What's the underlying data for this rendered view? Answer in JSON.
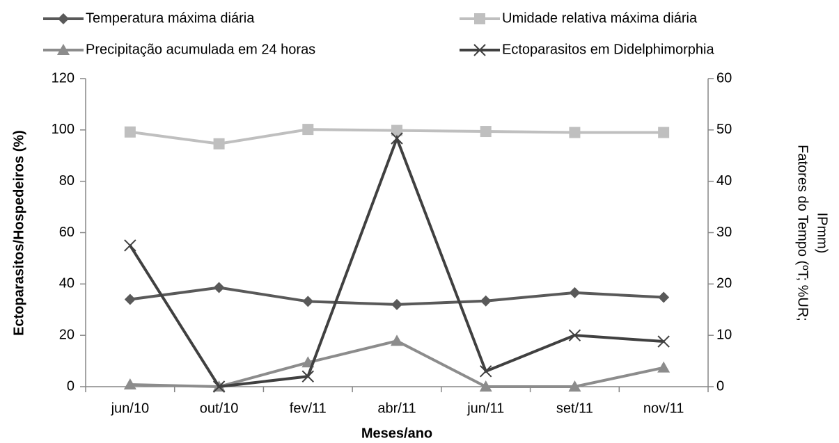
{
  "chart_data": {
    "type": "line",
    "categories": [
      "jun/10",
      "out/10",
      "fev/11",
      "abr/11",
      "jun/11",
      "set/11",
      "nov/11"
    ],
    "series": [
      {
        "name": "Temperatura máxima diária",
        "color": "#595959",
        "marker": "diamond",
        "axis": "y2",
        "values": [
          17,
          19.3,
          16.6,
          16,
          16.7,
          18.3,
          17.4
        ]
      },
      {
        "name": "Umidade relativa máxima diária",
        "color": "#bfbfbf",
        "marker": "square",
        "axis": "y2",
        "values": [
          49.6,
          47.3,
          50.1,
          49.9,
          49.7,
          49.5,
          49.5
        ]
      },
      {
        "name": "Precipitação acumulada em 24 horas",
        "color": "#8c8c8c",
        "marker": "triangle",
        "axis": "y2",
        "values": [
          0.4,
          0,
          4.7,
          8.9,
          0,
          0,
          3.7
        ]
      },
      {
        "name": "Ectoparasitos em Didelphimorphia",
        "color": "#404040",
        "marker": "x",
        "axis": "y",
        "values": [
          55,
          0,
          4,
          96.7,
          6,
          20,
          17.6
        ]
      }
    ],
    "ylim": [
      0,
      120
    ],
    "yticks": [
      0,
      20,
      40,
      60,
      80,
      100,
      120
    ],
    "y2lim": [
      0,
      60
    ],
    "y2ticks": [
      0,
      10,
      20,
      30,
      40,
      50,
      60
    ],
    "x_label": "Meses/ano",
    "y_label": "Ectoparasitos/Hospedeiros (%)",
    "y2_label": [
      "Fatores do Tempo (ºT; %UR;",
      "IPmm)"
    ],
    "legend": "top",
    "grid": false
  }
}
